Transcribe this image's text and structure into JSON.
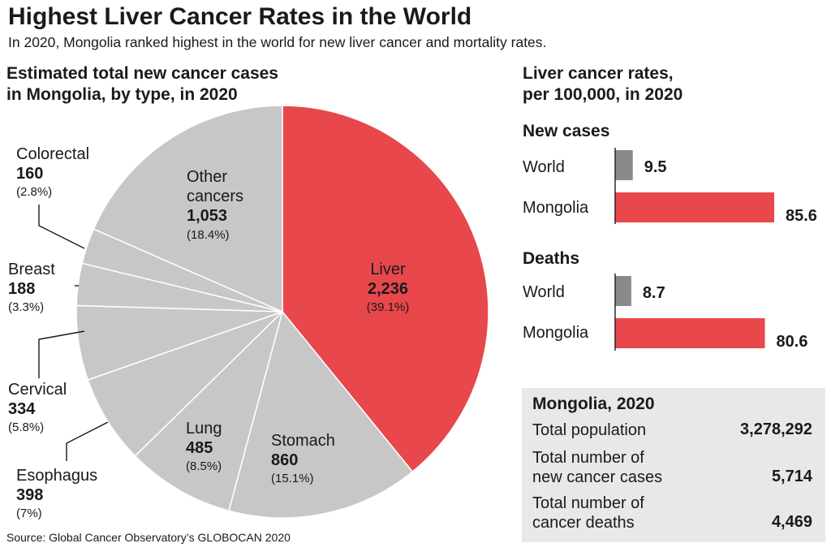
{
  "title": "Highest Liver Cancer Rates in the World",
  "subtitle": "In 2020, Mongolia ranked highest in the world for new liver cancer and mortality rates.",
  "source": "Source: Global Cancer Observatory’s GLOBOCAN 2020",
  "colors": {
    "highlight": "#e8474b",
    "neutral": "#c8c7c8",
    "bar_world": "#8a8a8a",
    "summary_bg": "#e8e8e8"
  },
  "chart_data": [
    {
      "type": "pie",
      "title_line1": "Estimated total new cancer cases",
      "title_line2": "in Mongolia, by type, in 2020",
      "slices": [
        {
          "label": "Liver",
          "value": 2236,
          "value_label": "2,236",
          "percent": 39.1,
          "percent_label": "(39.1%)",
          "highlight": true
        },
        {
          "label": "Stomach",
          "value": 860,
          "value_label": "860",
          "percent": 15.1,
          "percent_label": "(15.1%)"
        },
        {
          "label": "Lung",
          "value": 485,
          "value_label": "485",
          "percent": 8.5,
          "percent_label": "(8.5%)"
        },
        {
          "label": "Esophagus",
          "value": 398,
          "value_label": "398",
          "percent": 7,
          "percent_label": "(7%)"
        },
        {
          "label": "Cervical",
          "value": 334,
          "value_label": "334",
          "percent": 5.8,
          "percent_label": "(5.8%)"
        },
        {
          "label": "Breast",
          "value": 188,
          "value_label": "188",
          "percent": 3.3,
          "percent_label": "(3.3%)"
        },
        {
          "label": "Colorectal",
          "value": 160,
          "value_label": "160",
          "percent": 2.8,
          "percent_label": "(2.8%)"
        },
        {
          "label_line1": "Other",
          "label_line2": "cancers",
          "value": 1053,
          "value_label": "1,053",
          "percent": 18.4,
          "percent_label": "(18.4%)"
        }
      ]
    },
    {
      "type": "bar",
      "orientation": "horizontal",
      "title_line1": "Liver cancer rates,",
      "title_line2": "per 100,000, in 2020",
      "xlim": [
        0,
        85.6
      ],
      "groups": [
        {
          "name": "New cases",
          "bars": [
            {
              "label": "World",
              "value": 9.5,
              "value_label": "9.5"
            },
            {
              "label": "Mongolia",
              "value": 85.6,
              "value_label": "85.6"
            }
          ]
        },
        {
          "name": "Deaths",
          "bars": [
            {
              "label": "World",
              "value": 8.7,
              "value_label": "8.7"
            },
            {
              "label": "Mongolia",
              "value": 80.6,
              "value_label": "80.6"
            }
          ]
        }
      ]
    }
  ],
  "summary": {
    "title": "Mongolia, 2020",
    "rows": [
      {
        "label_line1": "Total population",
        "label_line2": "",
        "value": "3,278,292"
      },
      {
        "label_line1": "Total number of",
        "label_line2": "new cancer cases",
        "value": "5,714"
      },
      {
        "label_line1": "Total number of",
        "label_line2": "cancer deaths",
        "value": "4,469"
      }
    ]
  }
}
